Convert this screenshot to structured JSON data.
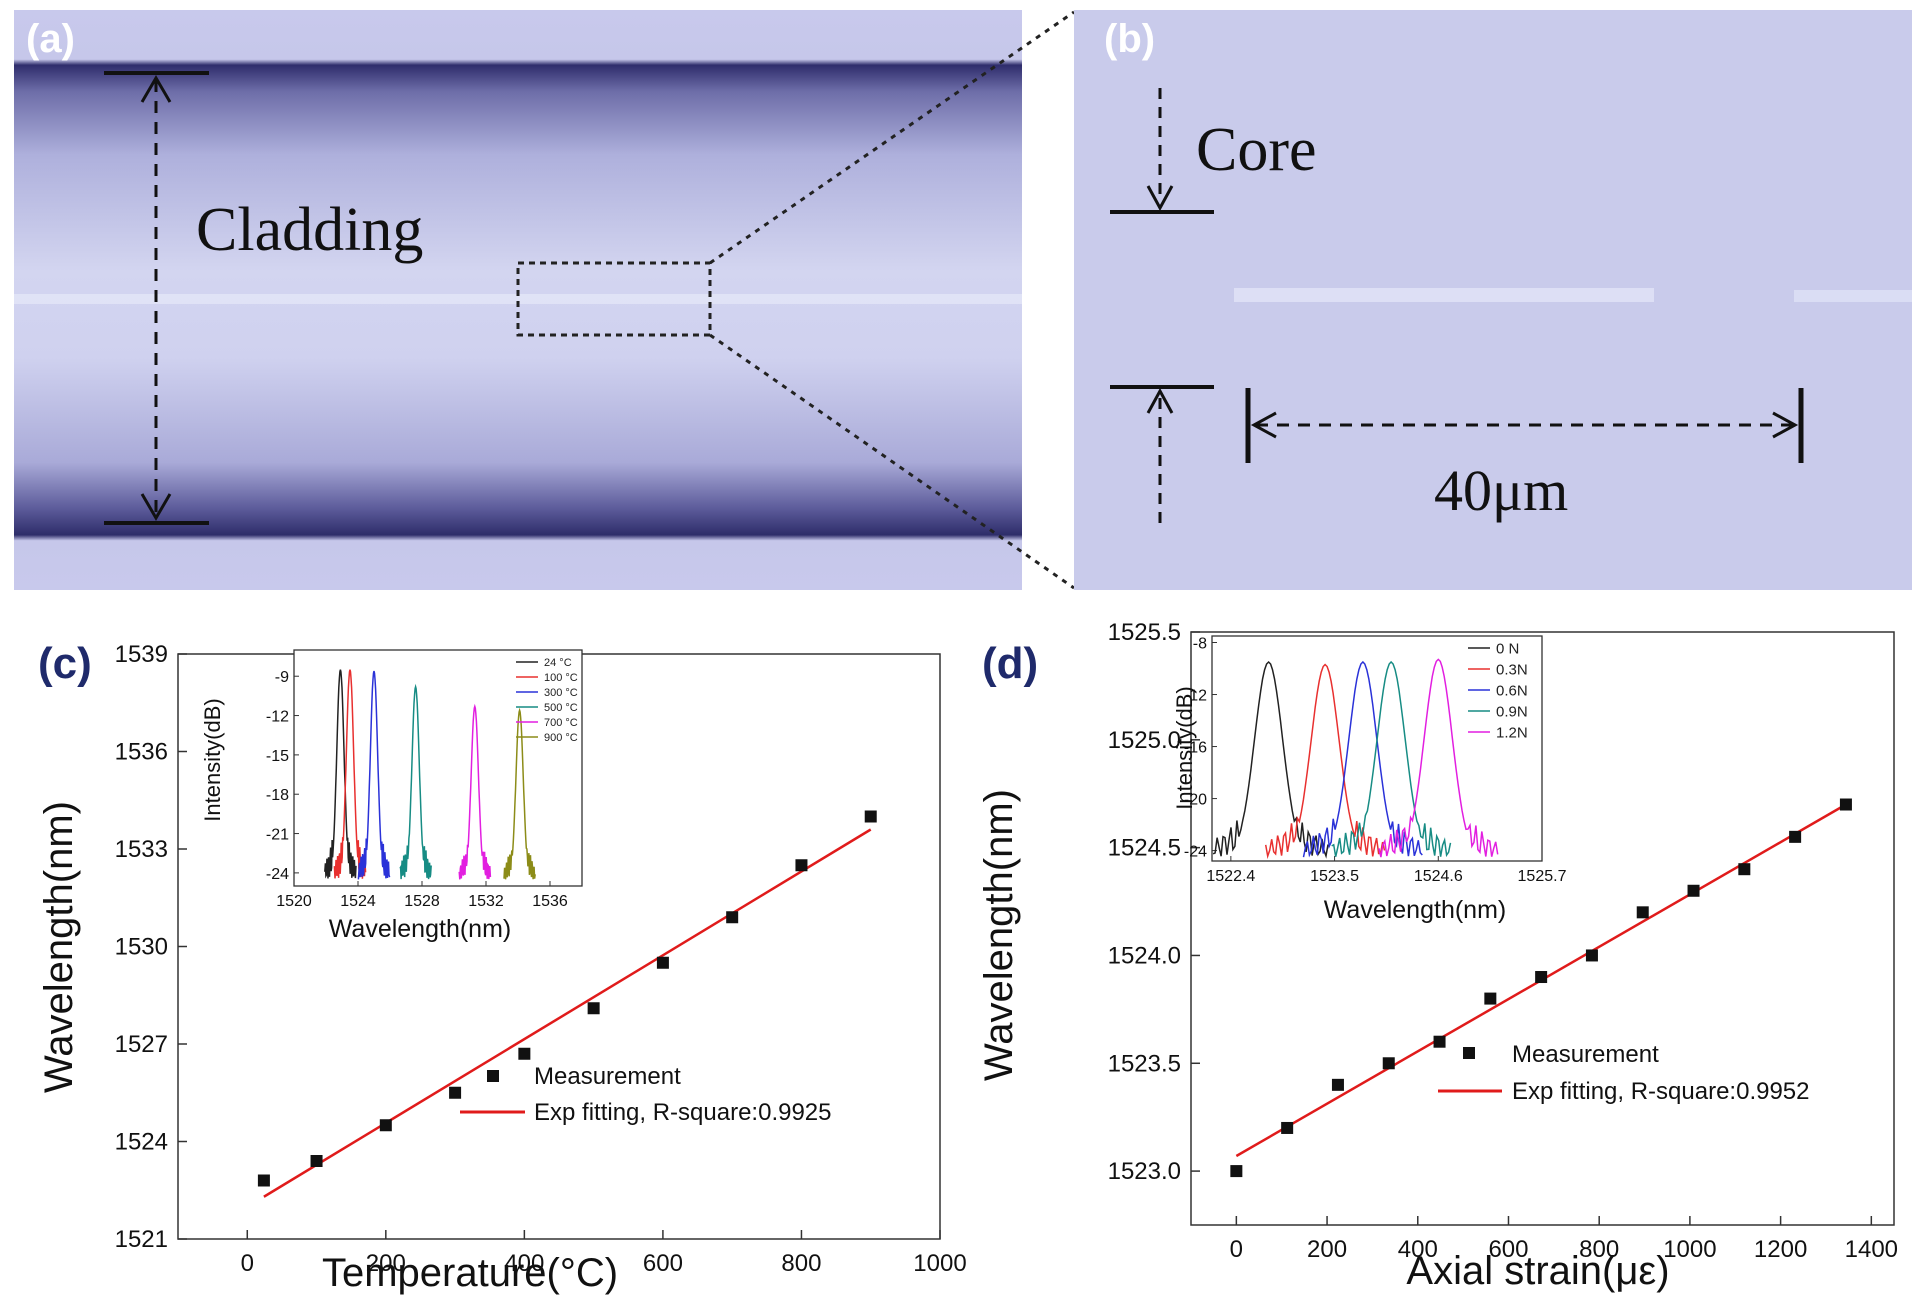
{
  "panel_labels": {
    "a": "(a)",
    "b": "(b)",
    "c": "(c)",
    "d": "(d)"
  },
  "image_a": {
    "text": "Cladding"
  },
  "image_b": {
    "text_core": "Core",
    "text_scale": "40μm"
  },
  "colors": {
    "microscope_bg": "#c8c9ec",
    "fiber_edge": "#2e2d6a",
    "fit_line": "#e01b1b",
    "marker": "#111111",
    "panel_label_dark": "#1f2a6b"
  },
  "chart_data": [
    {
      "id": "c",
      "type": "scatter",
      "xlabel": "Temperature(°C)",
      "ylabel": "Wavelength(nm)",
      "xlim": [
        -100,
        1000
      ],
      "ylim": [
        1521,
        1539
      ],
      "xticks": [
        0,
        200,
        400,
        600,
        800,
        1000
      ],
      "yticks": [
        1521,
        1524,
        1527,
        1530,
        1533,
        1536,
        1539
      ],
      "series": [
        {
          "name": "Measurement",
          "kind": "marker",
          "x": [
            24,
            100,
            200,
            300,
            400,
            500,
            600,
            700,
            800,
            900
          ],
          "y": [
            1522.8,
            1523.4,
            1524.5,
            1525.5,
            1526.7,
            1528.1,
            1529.5,
            1530.9,
            1532.5,
            1534.0
          ]
        },
        {
          "name": "Exp fitting, R-square:0.9925",
          "kind": "line",
          "x": [
            24,
            900
          ],
          "y": [
            1522.3,
            1533.6
          ]
        }
      ],
      "inset": {
        "xlabel": "Wavelength(nm)",
        "ylabel": "Intensity(dB)",
        "xlim": [
          1520,
          1538
        ],
        "ylim": [
          -25,
          -7
        ],
        "xticks": [
          1520,
          1524,
          1528,
          1532,
          1536
        ],
        "yticks": [
          -24,
          -21,
          -18,
          -15,
          -12,
          -9
        ],
        "legend": [
          {
            "name": "24 °C",
            "color": "#222222",
            "peak": 1522.9,
            "peak_db": -8.5
          },
          {
            "name": "100 °C",
            "color": "#e8302f",
            "peak": 1523.5,
            "peak_db": -8.5
          },
          {
            "name": "300 °C",
            "color": "#2a32d8",
            "peak": 1525.0,
            "peak_db": -8.6
          },
          {
            "name": "500 °C",
            "color": "#178c84",
            "peak": 1527.6,
            "peak_db": -9.8
          },
          {
            "name": "700 °C",
            "color": "#e21fe0",
            "peak": 1531.3,
            "peak_db": -11.3
          },
          {
            "name": "900 °C",
            "color": "#8c8c18",
            "peak": 1534.1,
            "peak_db": -11.6
          }
        ]
      }
    },
    {
      "id": "d",
      "type": "scatter",
      "xlabel": "Axial strain(με)",
      "ylabel": "Wavelength(nm)",
      "xlim": [
        -100,
        1450
      ],
      "ylim": [
        1522.75,
        1525.5
      ],
      "xticks": [
        0,
        200,
        400,
        600,
        800,
        1000,
        1200,
        1400
      ],
      "yticks": [
        1523.0,
        1523.5,
        1524.0,
        1524.5,
        1525.0,
        1525.5
      ],
      "series": [
        {
          "name": "Measurement",
          "kind": "marker",
          "x": [
            0,
            112,
            224,
            336,
            448,
            560,
            672,
            784,
            896,
            1008,
            1120,
            1232,
            1344
          ],
          "y": [
            1523.0,
            1523.2,
            1523.4,
            1523.5,
            1523.6,
            1523.8,
            1523.9,
            1524.0,
            1524.2,
            1524.3,
            1524.4,
            1524.55,
            1524.7
          ]
        },
        {
          "name": "Exp fitting, R-square:0.9952",
          "kind": "line",
          "x": [
            0,
            1344
          ],
          "y": [
            1523.07,
            1524.7
          ]
        }
      ],
      "inset": {
        "xlabel": "Wavelength(nm)",
        "ylabel": "Intensity(dB)",
        "xlim": [
          1522.2,
          1525.7
        ],
        "ylim": [
          -24.8,
          -7.5
        ],
        "xticks": [
          1522.4,
          1523.5,
          1524.6,
          1525.7
        ],
        "yticks": [
          -24,
          -20,
          -16,
          -12,
          -8
        ],
        "legend": [
          {
            "name": "0   N",
            "color": "#222222",
            "peak": 1522.8,
            "peak_db": -9.5
          },
          {
            "name": "0.3N",
            "color": "#e8302f",
            "peak": 1523.4,
            "peak_db": -9.7
          },
          {
            "name": "0.6N",
            "color": "#2a32d8",
            "peak": 1523.8,
            "peak_db": -9.5
          },
          {
            "name": "0.9N",
            "color": "#178c84",
            "peak": 1524.1,
            "peak_db": -9.5
          },
          {
            "name": "1.2N",
            "color": "#e21fe0",
            "peak": 1524.6,
            "peak_db": -9.3
          }
        ]
      }
    }
  ]
}
